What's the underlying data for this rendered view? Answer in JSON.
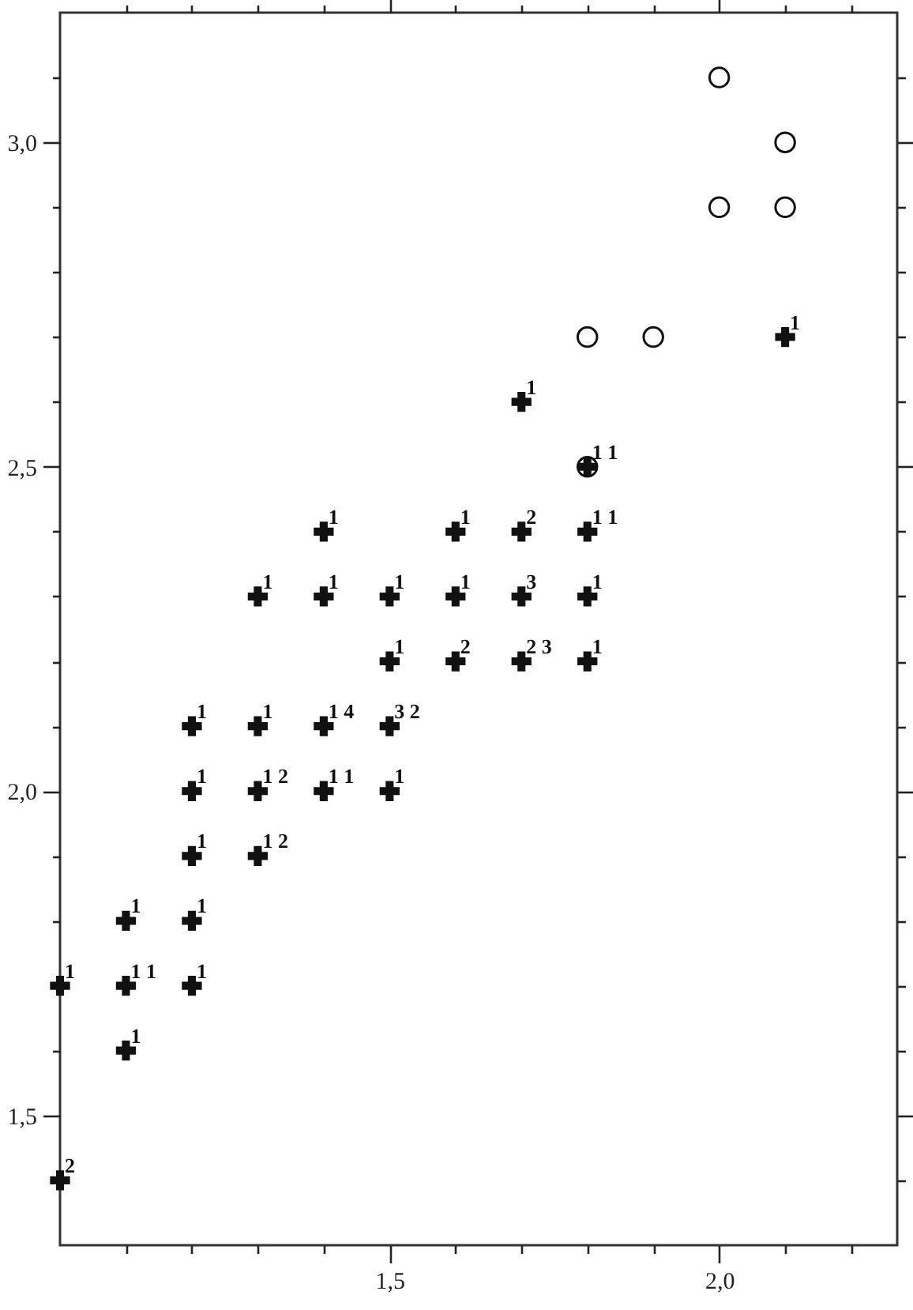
{
  "chart_data": {
    "type": "scatter",
    "xlim": [
      1.0,
      2.27
    ],
    "ylim": [
      1.3,
      3.2
    ],
    "xticks": [
      {
        "value": 1.1,
        "label": null
      },
      {
        "value": 1.2,
        "label": null
      },
      {
        "value": 1.3,
        "label": null
      },
      {
        "value": 1.4,
        "label": null
      },
      {
        "value": 1.5,
        "label": "1,5"
      },
      {
        "value": 1.6,
        "label": null
      },
      {
        "value": 1.7,
        "label": null
      },
      {
        "value": 1.8,
        "label": null
      },
      {
        "value": 1.9,
        "label": null
      },
      {
        "value": 2.0,
        "label": "2,0"
      },
      {
        "value": 2.1,
        "label": null
      },
      {
        "value": 2.2,
        "label": null
      }
    ],
    "yticks": [
      {
        "value": 1.4,
        "label": null
      },
      {
        "value": 1.5,
        "label": "1,5"
      },
      {
        "value": 1.6,
        "label": null
      },
      {
        "value": 1.7,
        "label": null
      },
      {
        "value": 1.8,
        "label": null
      },
      {
        "value": 1.9,
        "label": null
      },
      {
        "value": 2.0,
        "label": "2,0"
      },
      {
        "value": 2.1,
        "label": null
      },
      {
        "value": 2.2,
        "label": null
      },
      {
        "value": 2.3,
        "label": null
      },
      {
        "value": 2.4,
        "label": null
      },
      {
        "value": 2.5,
        "label": "2,5"
      },
      {
        "value": 2.6,
        "label": null
      },
      {
        "value": 2.7,
        "label": null
      },
      {
        "value": 2.8,
        "label": null
      },
      {
        "value": 2.9,
        "label": null
      },
      {
        "value": 3.0,
        "label": "3,0"
      },
      {
        "value": 3.1,
        "label": null
      }
    ],
    "grid": false,
    "series": [
      {
        "color": "#111111",
        "marker": "cross",
        "x": [
          2.1,
          1.7,
          1.8,
          1.4,
          1.6,
          1.7,
          1.8,
          1.3,
          1.4,
          1.5,
          1.6,
          1.7,
          1.8,
          1.5,
          1.6,
          1.7,
          1.8,
          1.2,
          1.3,
          1.4,
          1.5,
          1.2,
          1.3,
          1.4,
          1.5,
          1.2,
          1.3,
          1.1,
          1.2,
          1.0,
          1.1,
          1.2,
          1.1,
          1.0
        ],
        "values": [
          2.7,
          2.6,
          2.5,
          2.4,
          2.4,
          2.4,
          2.4,
          2.3,
          2.3,
          2.3,
          2.3,
          2.3,
          2.3,
          2.2,
          2.2,
          2.2,
          2.2,
          2.1,
          2.1,
          2.1,
          2.1,
          2.0,
          2.0,
          2.0,
          2.0,
          1.9,
          1.9,
          1.8,
          1.8,
          1.7,
          1.7,
          1.7,
          1.6,
          1.4
        ]
      },
      {
        "color": "#111111",
        "marker": "circle",
        "x": [
          2.0,
          2.1,
          2.0,
          2.1,
          1.8,
          1.9,
          1.8
        ],
        "values": [
          3.1,
          3.0,
          2.9,
          2.9,
          2.7,
          2.7,
          2.5
        ]
      }
    ],
    "annotations": [
      {
        "text": "1",
        "x": 2.1,
        "y": 2.7
      },
      {
        "text": "1",
        "x": 1.7,
        "y": 2.6
      },
      {
        "text": "1 1",
        "x": 1.8,
        "y": 2.5
      },
      {
        "text": "1",
        "x": 1.4,
        "y": 2.4
      },
      {
        "text": "1",
        "x": 1.6,
        "y": 2.4
      },
      {
        "text": "2",
        "x": 1.7,
        "y": 2.4
      },
      {
        "text": "1 1",
        "x": 1.8,
        "y": 2.4
      },
      {
        "text": "1",
        "x": 1.3,
        "y": 2.3
      },
      {
        "text": "1",
        "x": 1.4,
        "y": 2.3
      },
      {
        "text": "1",
        "x": 1.5,
        "y": 2.3
      },
      {
        "text": "1",
        "x": 1.6,
        "y": 2.3
      },
      {
        "text": "3",
        "x": 1.7,
        "y": 2.3
      },
      {
        "text": "1",
        "x": 1.8,
        "y": 2.3
      },
      {
        "text": "1",
        "x": 1.5,
        "y": 2.2
      },
      {
        "text": "2",
        "x": 1.6,
        "y": 2.2
      },
      {
        "text": "2 3",
        "x": 1.7,
        "y": 2.2
      },
      {
        "text": "1",
        "x": 1.8,
        "y": 2.2
      },
      {
        "text": "1",
        "x": 1.2,
        "y": 2.1
      },
      {
        "text": "1",
        "x": 1.3,
        "y": 2.1
      },
      {
        "text": "1 4",
        "x": 1.4,
        "y": 2.1
      },
      {
        "text": "3 2",
        "x": 1.5,
        "y": 2.1
      },
      {
        "text": "1",
        "x": 1.2,
        "y": 2.0
      },
      {
        "text": "1 2",
        "x": 1.3,
        "y": 2.0
      },
      {
        "text": "1 1",
        "x": 1.4,
        "y": 2.0
      },
      {
        "text": "1",
        "x": 1.5,
        "y": 2.0
      },
      {
        "text": "1",
        "x": 1.2,
        "y": 1.9
      },
      {
        "text": "1 2",
        "x": 1.3,
        "y": 1.9
      },
      {
        "text": "1",
        "x": 1.1,
        "y": 1.8
      },
      {
        "text": "1",
        "x": 1.2,
        "y": 1.8
      },
      {
        "text": "1",
        "x": 1.0,
        "y": 1.7
      },
      {
        "text": "1 1",
        "x": 1.1,
        "y": 1.7
      },
      {
        "text": "1",
        "x": 1.2,
        "y": 1.7
      },
      {
        "text": "1",
        "x": 1.1,
        "y": 1.6
      },
      {
        "text": "2",
        "x": 1.0,
        "y": 1.4
      }
    ]
  }
}
